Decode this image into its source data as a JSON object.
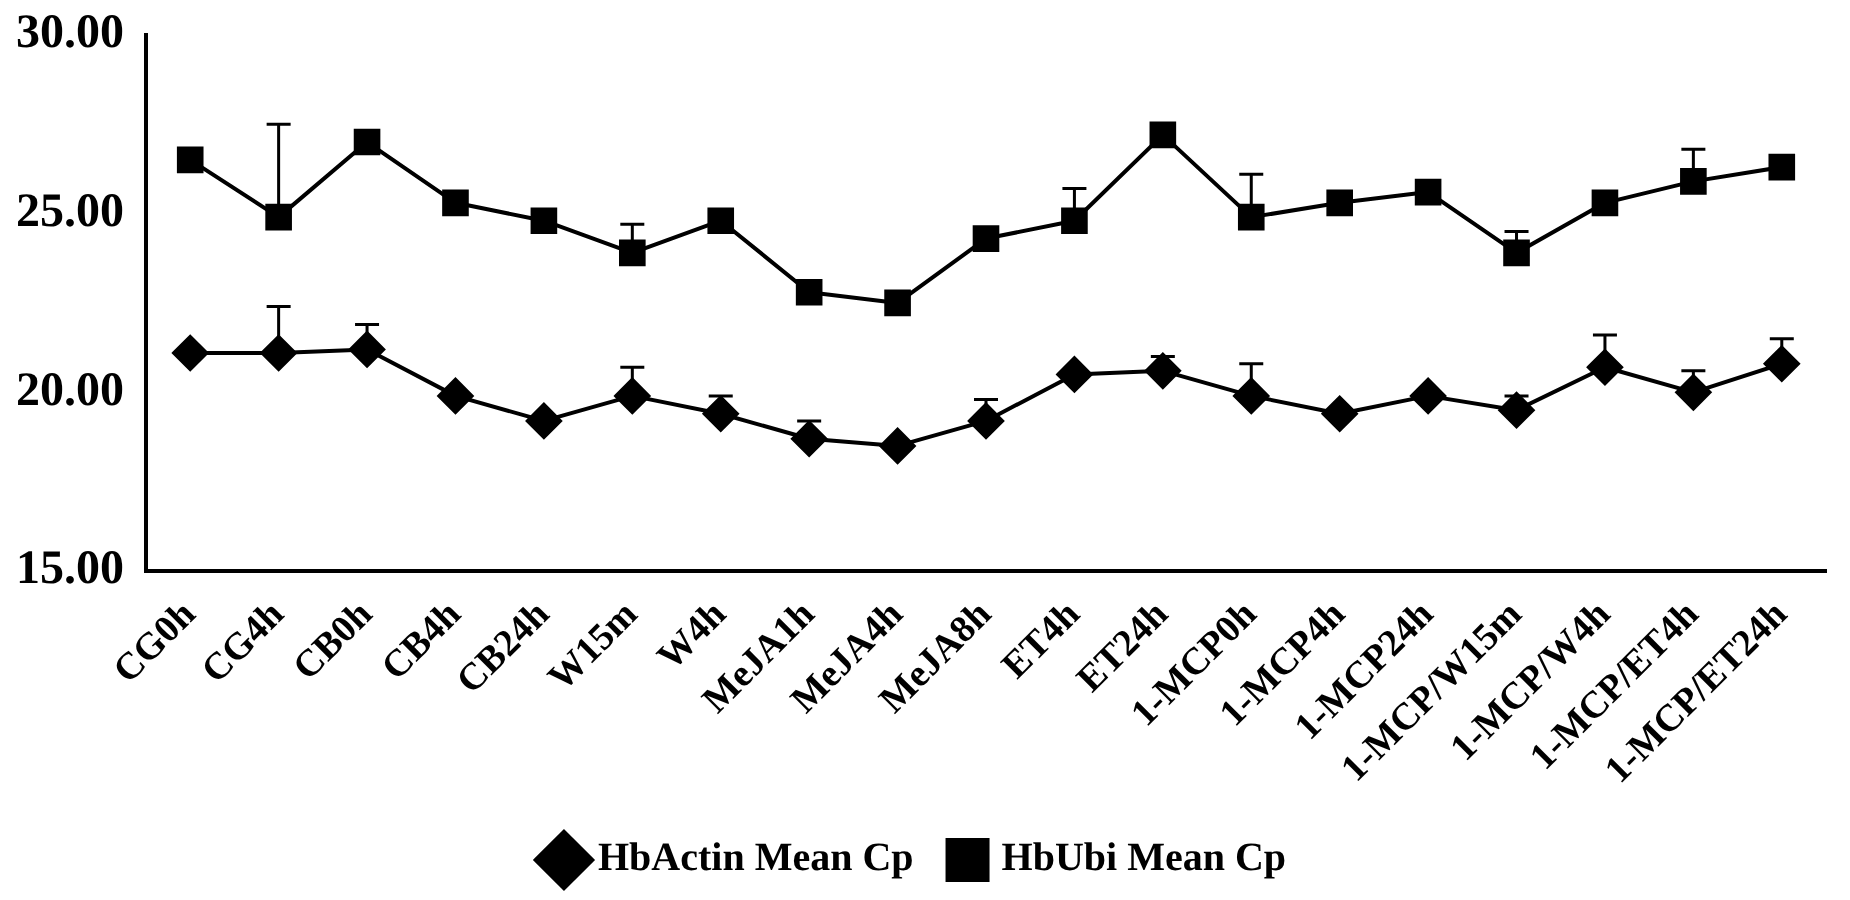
{
  "chart_data": {
    "type": "line",
    "categories": [
      "CG0h",
      "CG4h",
      "CB0h",
      "CB4h",
      "CB24h",
      "W15m",
      "W4h",
      "MeJA1h",
      "MeJA4h",
      "MeJA8h",
      "ET4h",
      "ET24h",
      "1-MCP0h",
      "1-MCP4h",
      "1-MCP24h",
      "1-MCP/W15m",
      "1-MCP/W4h",
      "1-MCP/ET4h",
      "1-MCP/ET24h"
    ],
    "series": [
      {
        "name": "HbActin Mean Cp",
        "color": "#000000",
        "marker": "diamond",
        "values": [
          21.1,
          21.1,
          21.2,
          19.9,
          19.2,
          19.9,
          19.4,
          18.7,
          18.5,
          19.2,
          20.5,
          20.6,
          19.9,
          19.4,
          19.9,
          19.5,
          20.7,
          20.0,
          20.8
        ],
        "errors": [
          null,
          [
            21.1,
            22.4
          ],
          [
            21.2,
            21.9
          ],
          null,
          null,
          [
            19.9,
            20.7
          ],
          [
            19.4,
            19.9
          ],
          [
            18.7,
            19.2
          ],
          null,
          [
            19.2,
            19.8
          ],
          null,
          [
            20.6,
            21.0
          ],
          [
            19.9,
            20.8
          ],
          null,
          null,
          [
            19.5,
            19.9
          ],
          [
            20.7,
            21.6
          ],
          [
            20.0,
            20.6
          ],
          [
            20.8,
            21.5
          ]
        ]
      },
      {
        "name": "HbUbi Mean Cp",
        "color": "#000000",
        "marker": "square",
        "values": [
          26.5,
          24.9,
          27.0,
          25.3,
          24.8,
          23.9,
          24.8,
          22.8,
          22.5,
          24.3,
          24.8,
          27.2,
          24.9,
          25.3,
          25.6,
          23.9,
          25.3,
          25.9,
          26.3
        ],
        "errors": [
          null,
          [
            24.9,
            27.5
          ],
          null,
          null,
          null,
          [
            23.9,
            24.7
          ],
          null,
          null,
          null,
          null,
          [
            24.8,
            25.7
          ],
          null,
          [
            24.9,
            26.1
          ],
          null,
          null,
          [
            23.9,
            24.5
          ],
          null,
          [
            25.9,
            26.8
          ],
          null
        ]
      }
    ],
    "ylim": [
      15,
      30
    ],
    "yticks": [
      {
        "value": 15,
        "label": "15.00"
      },
      {
        "value": 20,
        "label": "20.00"
      },
      {
        "value": 25,
        "label": "25.00"
      },
      {
        "value": 30,
        "label": "30.00"
      }
    ],
    "grid": false,
    "legend": "bottom",
    "line_style": "solid"
  }
}
